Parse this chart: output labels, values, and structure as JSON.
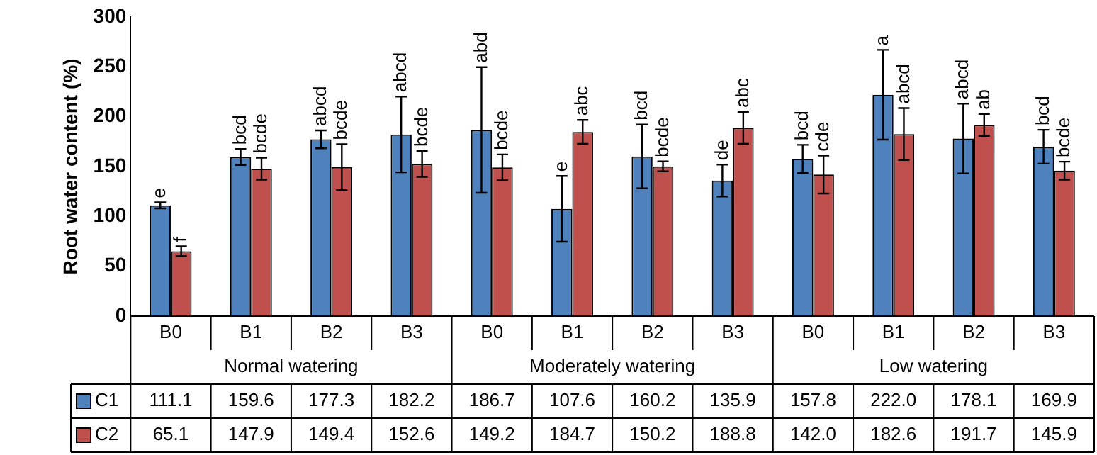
{
  "chart_data": {
    "type": "bar",
    "ylabel": "Root water content (%)",
    "categories": [
      "B0",
      "B1",
      "B2",
      "B3",
      "B0",
      "B1",
      "B2",
      "B3",
      "B0",
      "B1",
      "B2",
      "B3"
    ],
    "series": [
      {
        "name": "C1",
        "color": "#4f81bd",
        "values": [
          111.1,
          159.6,
          177.3,
          182.2,
          186.7,
          107.6,
          160.2,
          135.9,
          157.8,
          222.0,
          178.1,
          169.9
        ],
        "errors": [
          3,
          8,
          9,
          38,
          63,
          33,
          32,
          16,
          14,
          45,
          35,
          17
        ],
        "value_labels": [
          "111.1",
          "159.6",
          "177.3",
          "182.2",
          "186.7",
          "107.6",
          "160.2",
          "135.9",
          "157.8",
          "222.0",
          "178.1",
          "169.9"
        ]
      },
      {
        "name": "C2",
        "color": "#c0504d",
        "values": [
          65.1,
          147.9,
          149.4,
          152.6,
          149.2,
          184.7,
          150.2,
          188.8,
          142.0,
          182.6,
          191.7,
          145.9
        ],
        "errors": [
          5,
          11,
          23,
          13,
          13,
          12,
          5,
          16,
          19,
          26,
          11,
          9
        ],
        "value_labels": [
          "65.1",
          "147.9",
          "149.4",
          "152.6",
          "149.2",
          "184.7",
          "150.2",
          "188.8",
          "142.0",
          "182.6",
          "191.7",
          "145.9"
        ]
      }
    ],
    "annotations": [
      "Normal watering",
      "Moderately watering",
      "Low watering",
      {
        "text": "e",
        "y": 114.1
      },
      {
        "text": "bcd",
        "y": 167.6
      },
      {
        "text": "abcd",
        "y": 186.3
      },
      {
        "text": "abcd",
        "y": 220.2
      },
      {
        "text": "abd",
        "y": 249.7
      },
      {
        "text": "e",
        "y": 140.6
      },
      {
        "text": "bcd",
        "y": 192.2
      },
      {
        "text": "de",
        "y": 151.9
      },
      {
        "text": "bcd",
        "y": 171.8
      },
      {
        "text": "a",
        "y": 267.0
      },
      {
        "text": "abcd",
        "y": 213.1
      },
      {
        "text": "bcd",
        "y": 186.9
      },
      {
        "text": "f",
        "y": 70.1
      },
      {
        "text": "bcde",
        "y": 158.9
      },
      {
        "text": "bcde",
        "y": 172.4
      },
      {
        "text": "bcde",
        "y": 165.6
      },
      {
        "text": "bcde",
        "y": 162.2
      },
      {
        "text": "abc",
        "y": 196.7
      },
      {
        "text": "bcde",
        "y": 155.2
      },
      {
        "text": "abc",
        "y": 204.8
      },
      {
        "text": "cde",
        "y": 161.0
      },
      {
        "text": "abcd",
        "y": 208.6
      },
      {
        "text": "ab",
        "y": 202.7
      },
      {
        "text": "bcde",
        "y": 154.9
      }
    ],
    "ylim": [
      0,
      300
    ],
    "yticks": [
      0,
      50,
      100,
      150,
      200,
      250,
      300
    ],
    "grid": false,
    "legend": "bottom left"
  }
}
